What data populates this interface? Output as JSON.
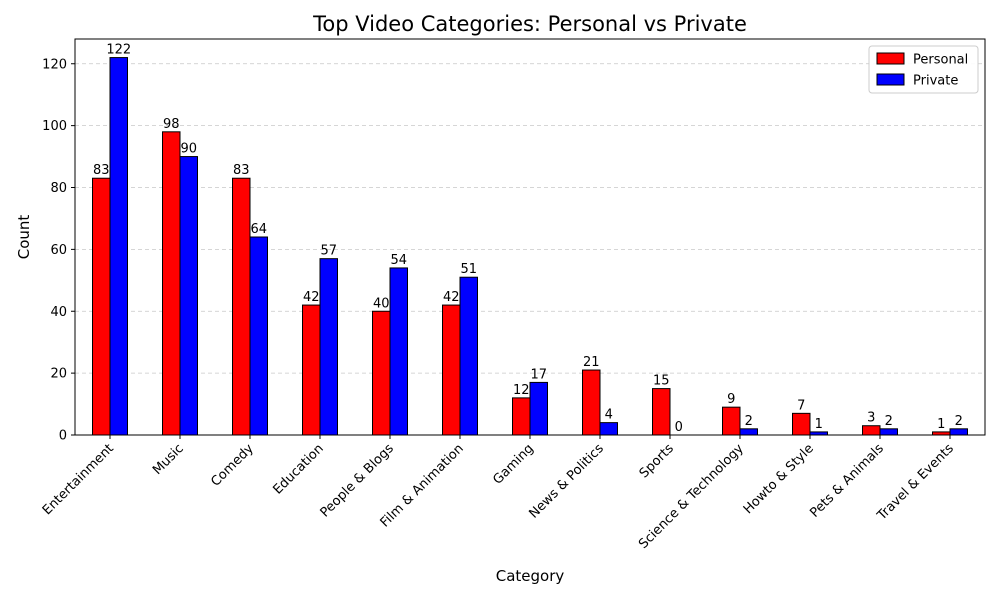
{
  "chart_data": {
    "type": "bar",
    "title": "Top Video Categories: Personal vs Private",
    "xlabel": "Category",
    "ylabel": "Count",
    "ylim": [
      0,
      128
    ],
    "yticks": [
      0,
      20,
      40,
      60,
      80,
      100,
      120
    ],
    "grid": "y-dashed",
    "legend_position": "top-right",
    "categories": [
      "Entertainment",
      "Music",
      "Comedy",
      "Education",
      "People & Blogs",
      "Film & Animation",
      "Gaming",
      "News & Politics",
      "Sports",
      "Science & Technology",
      "Howto & Style",
      "Pets & Animals",
      "Travel & Events"
    ],
    "series": [
      {
        "name": "Personal",
        "color": "#ff0000",
        "values": [
          83,
          98,
          83,
          42,
          40,
          42,
          12,
          21,
          15,
          9,
          7,
          3,
          1
        ]
      },
      {
        "name": "Private",
        "color": "#0000ff",
        "values": [
          122,
          90,
          64,
          57,
          54,
          51,
          17,
          4,
          0,
          2,
          1,
          2,
          2
        ]
      }
    ]
  }
}
